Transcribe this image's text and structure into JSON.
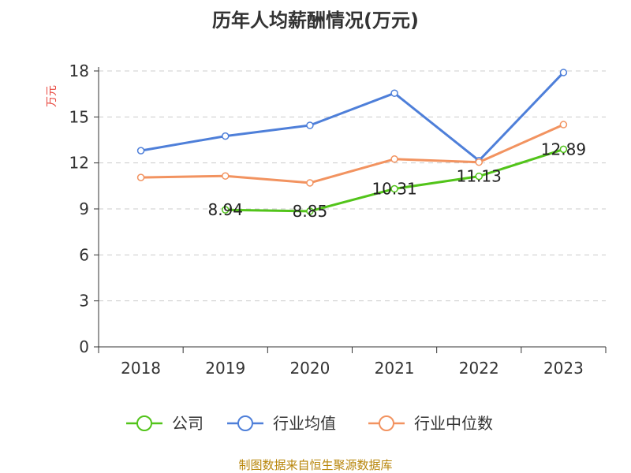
{
  "chart_data": {
    "type": "line",
    "title": "历年人均薪酬情况(万元)",
    "ylabel": "万元",
    "categories": [
      "2018",
      "2019",
      "2020",
      "2021",
      "2022",
      "2023"
    ],
    "ylim": [
      0,
      18
    ],
    "yticks": [
      "0",
      "3",
      "6",
      "9",
      "12",
      "15",
      "18"
    ],
    "grid": true,
    "legend_position": "bottom",
    "series": [
      {
        "name": "公司",
        "color": "#52c41a",
        "values": [
          null,
          8.94,
          8.85,
          10.31,
          11.13,
          12.89
        ],
        "labels": [
          null,
          "8.94",
          "8.85",
          "10.31",
          "11.13",
          "12.89"
        ]
      },
      {
        "name": "行业均值",
        "color": "#4e7fd9",
        "values": [
          12.8,
          13.75,
          14.45,
          16.55,
          12.15,
          17.9
        ],
        "labels": []
      },
      {
        "name": "行业中位数",
        "color": "#f29360",
        "values": [
          11.05,
          11.15,
          10.7,
          12.25,
          12.05,
          14.5
        ],
        "labels": []
      }
    ],
    "source": "制图数据来自恒生聚源数据库"
  }
}
